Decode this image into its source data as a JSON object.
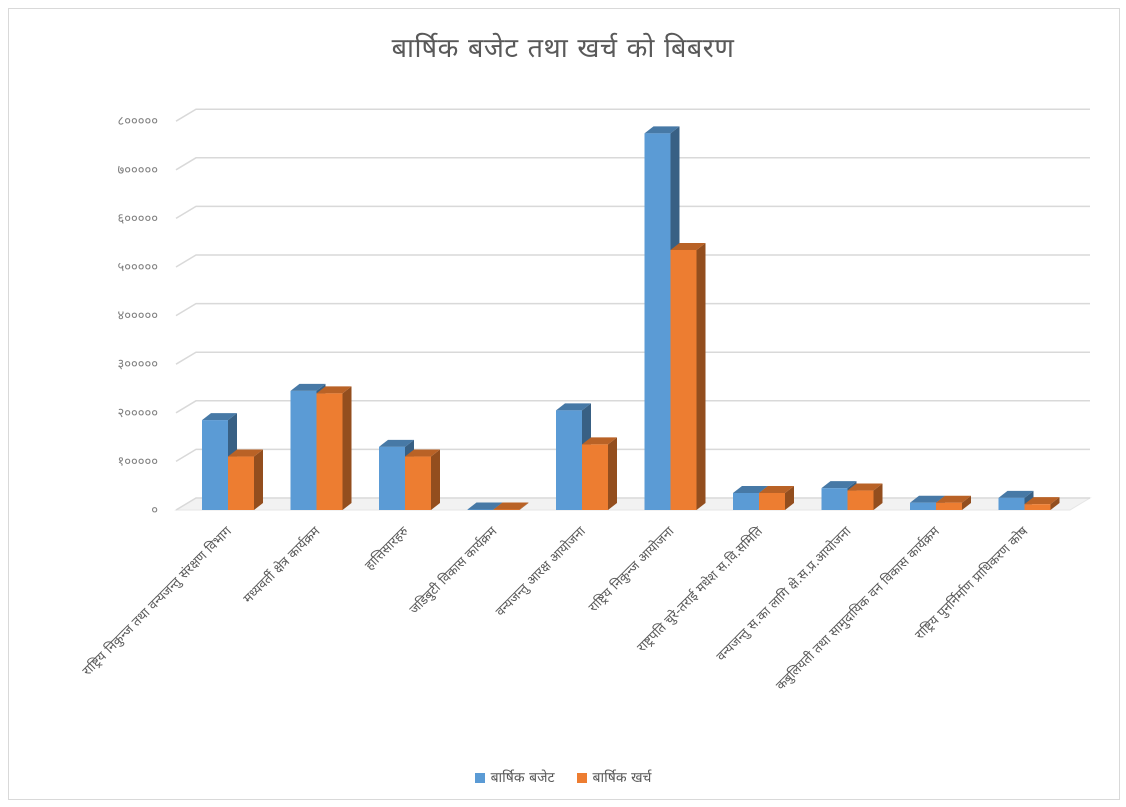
{
  "chart_data": {
    "type": "bar",
    "title": "बार्षिक बजेट तथा खर्च को बिबरण",
    "xlabel": "",
    "ylabel": "",
    "ylim": [
      0,
      800000
    ],
    "yticks": [
      "०",
      "१०००००",
      "२०००००",
      "३०००००",
      "४०००००",
      "५०००००",
      "६०००००",
      "७०००००",
      "८०००००"
    ],
    "categories": [
      "राष्ट्रिय निकुन्ज तथा वन्यजन्तु संरक्षण विभाग",
      "मध्यवर्ती क्षेत्र कार्यक्रम",
      "हात्तिसारहरु",
      "जडिबुटी विकास कार्यक्रम",
      "वन्यजन्तु आरक्ष आयोजना",
      "राष्ट्रिय निकुन्ज आयोजना",
      "राष्ट्रपति चुरे-तराई मधेश स.वि.समिति",
      "वन्यजन्तु स.का लागि क्षे.स.प्र.आयोजना",
      "कबुलियती तथा सामुदायिक वन विकास कार्यक्रम",
      "राष्ट्रिय पुनर्निर्माण प्राधिकरण कोष"
    ],
    "series": [
      {
        "name": "बार्षिक बजेट",
        "color": "#5b9bd5",
        "values": [
          185000,
          245000,
          130000,
          1000,
          205000,
          775000,
          35000,
          45000,
          15000,
          25000
        ]
      },
      {
        "name": "बार्षिक खर्च",
        "color": "#ed7d31",
        "values": [
          110000,
          240000,
          110000,
          500,
          135000,
          535000,
          35000,
          40000,
          15000,
          12000
        ]
      }
    ],
    "grid": true,
    "legend": "bottom",
    "style": "3d-clustered-column"
  }
}
